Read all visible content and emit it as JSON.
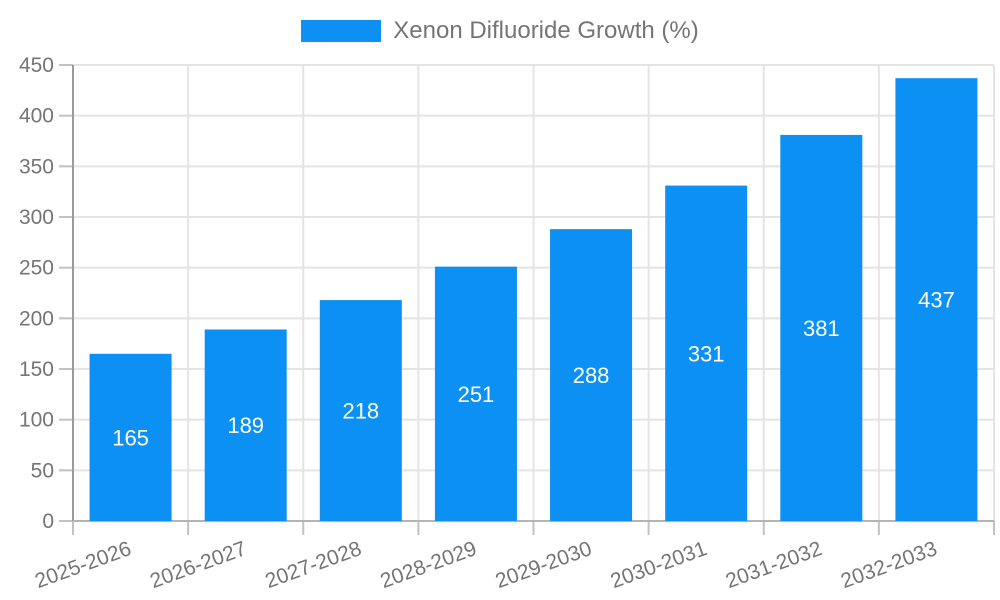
{
  "legend": {
    "label": "Xenon Difluoride Growth (%)"
  },
  "colors": {
    "bar": "#0c90f3",
    "bar_label_text": "#ffffff",
    "axis_text": "#757575",
    "legend_text": "#757575",
    "gridline": "#e4e4e4",
    "y_axis_line": "#9a9a9a",
    "x_axis_line": "#b4b4b4",
    "tick": "#c2c2c2",
    "background": "#ffffff"
  },
  "chart_data": {
    "type": "bar",
    "title": "",
    "xlabel": "",
    "ylabel": "",
    "series_name": "Xenon Difluoride Growth (%)",
    "categories": [
      "2025-2026",
      "2026-2027",
      "2027-2028",
      "2028-2029",
      "2029-2030",
      "2030-2031",
      "2031-2032",
      "2032-2033"
    ],
    "values": [
      165,
      189,
      218,
      251,
      288,
      331,
      381,
      437
    ],
    "value_labels_inside_bars": true,
    "ylim": [
      0,
      450
    ],
    "ytick_step": 50,
    "yticks": [
      0,
      50,
      100,
      150,
      200,
      250,
      300,
      350,
      400,
      450
    ],
    "grid": true,
    "legend_position": "top-center",
    "x_label_rotation_deg": -20
  }
}
